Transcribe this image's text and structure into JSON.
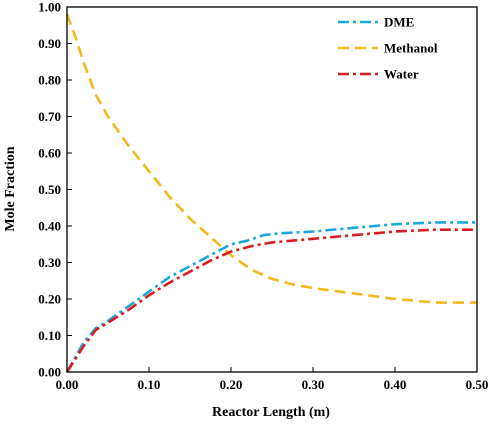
{
  "chart_data": {
    "type": "line",
    "title": "",
    "xlabel": "Reactor Length (m)",
    "ylabel": "Mole Fraction",
    "xlim": [
      0,
      0.5
    ],
    "ylim": [
      0,
      1.0
    ],
    "x_ticks": [
      "0.00",
      "0.10",
      "0.20",
      "0.30",
      "0.40",
      "0.50"
    ],
    "y_ticks": [
      "0.00",
      "0.10",
      "0.20",
      "0.30",
      "0.40",
      "0.50",
      "0.60",
      "0.70",
      "0.80",
      "0.90",
      "1.00"
    ],
    "grid": false,
    "legend_position": "top-right",
    "series": [
      {
        "name": "DME",
        "color": "#1aa7df",
        "dash": "dash-dot",
        "x": [
          0.0,
          0.01,
          0.02,
          0.035,
          0.05,
          0.075,
          0.1,
          0.125,
          0.15,
          0.175,
          0.2,
          0.22,
          0.24,
          0.26,
          0.3,
          0.35,
          0.4,
          0.45,
          0.5
        ],
        "y": [
          0.0,
          0.04,
          0.08,
          0.12,
          0.14,
          0.18,
          0.22,
          0.26,
          0.29,
          0.32,
          0.35,
          0.36,
          0.375,
          0.38,
          0.385,
          0.395,
          0.405,
          0.41,
          0.41
        ]
      },
      {
        "name": "Methanol",
        "color": "#f2b81c",
        "dash": "dash",
        "x": [
          0.0,
          0.01,
          0.02,
          0.035,
          0.05,
          0.075,
          0.1,
          0.125,
          0.15,
          0.175,
          0.2,
          0.225,
          0.25,
          0.275,
          0.3,
          0.35,
          0.4,
          0.45,
          0.5
        ],
        "y": [
          0.98,
          0.92,
          0.85,
          0.76,
          0.7,
          0.62,
          0.55,
          0.48,
          0.42,
          0.37,
          0.32,
          0.28,
          0.255,
          0.24,
          0.23,
          0.215,
          0.2,
          0.19,
          0.19
        ]
      },
      {
        "name": "Water",
        "color": "#d81e1e",
        "dash": "dash-dot",
        "x": [
          0.0,
          0.01,
          0.02,
          0.035,
          0.05,
          0.075,
          0.1,
          0.125,
          0.15,
          0.175,
          0.2,
          0.225,
          0.25,
          0.3,
          0.35,
          0.4,
          0.45,
          0.5
        ],
        "y": [
          0.0,
          0.035,
          0.07,
          0.115,
          0.135,
          0.17,
          0.21,
          0.245,
          0.275,
          0.305,
          0.33,
          0.345,
          0.355,
          0.365,
          0.375,
          0.385,
          0.39,
          0.39
        ]
      }
    ]
  }
}
